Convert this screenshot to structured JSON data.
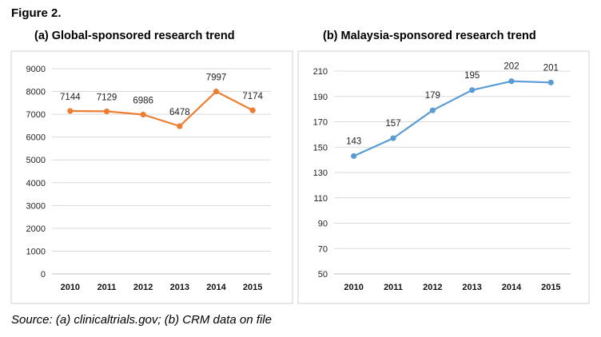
{
  "figure_label": "Figure 2.",
  "source": "Source: (a) clinicaltrials.gov; (b) CRM data on file",
  "chart_data": [
    {
      "type": "line",
      "title": "(a) Global-sponsored research trend",
      "categories": [
        "2010",
        "2011",
        "2012",
        "2013",
        "2014",
        "2015"
      ],
      "values": [
        7144,
        7129,
        6986,
        6478,
        7997,
        7174
      ],
      "data_labels": [
        "7144",
        "7129",
        "6986",
        "6478",
        "7997",
        "7174"
      ],
      "ylim": [
        0,
        9000
      ],
      "yticks": [
        0,
        1000,
        2000,
        3000,
        4000,
        5000,
        6000,
        7000,
        8000,
        9000
      ],
      "ytick_labels": [
        "0",
        "1000",
        "2000",
        "3000",
        "4000",
        "5000",
        "6000",
        "7000",
        "8000",
        "9000"
      ],
      "color": "#ED7D31",
      "grid": true,
      "xlabel": "",
      "ylabel": ""
    },
    {
      "type": "line",
      "title": "(b) Malaysia-sponsored research trend",
      "categories": [
        "2010",
        "2011",
        "2012",
        "2013",
        "2014",
        "2015"
      ],
      "values": [
        143,
        157,
        179,
        195,
        202,
        201
      ],
      "data_labels": [
        "143",
        "157",
        "179",
        "195",
        "202",
        "201"
      ],
      "ylim": [
        50,
        210
      ],
      "yticks": [
        50,
        70,
        90,
        110,
        130,
        150,
        170,
        190,
        210
      ],
      "ytick_labels": [
        "50",
        "70",
        "90",
        "110",
        "130",
        "150",
        "170",
        "190",
        "210"
      ],
      "color": "#5B9BD5",
      "grid": true,
      "xlabel": "",
      "ylabel": ""
    }
  ]
}
